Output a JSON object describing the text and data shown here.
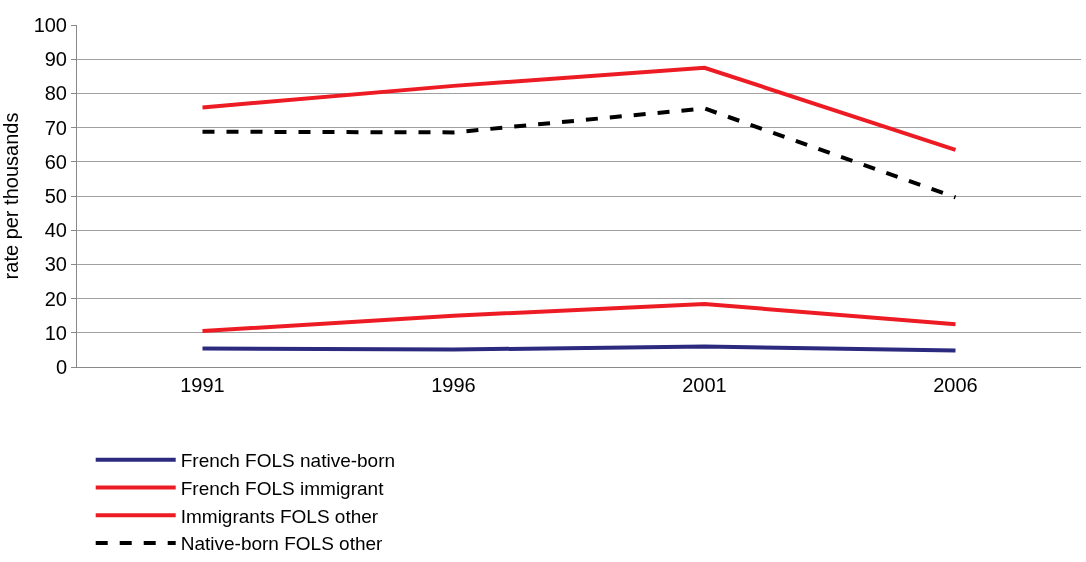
{
  "chart_data": {
    "type": "line",
    "ylabel": "rate per thousands",
    "categories": [
      "1991",
      "1996",
      "2001",
      "2006"
    ],
    "series": [
      {
        "name": "French FOLS native-born",
        "color": "#2b2a7f",
        "values": [
          5.4,
          5.1,
          6.0,
          4.8
        ]
      },
      {
        "name": "French FOLS immigrant",
        "color": "#ed1c24",
        "values": [
          10.5,
          15.0,
          18.4,
          12.5
        ]
      },
      {
        "name": "Immigrants FOLS other",
        "color": "#ed1c24",
        "values": [
          75.9,
          82.2,
          87.5,
          63.5
        ]
      },
      {
        "name": "Native-born FOLS other",
        "color": "#000000",
        "values": [
          68.8,
          68.6,
          75.6,
          49.6
        ],
        "line_style": "dashed"
      }
    ],
    "ylim": [
      0,
      100
    ],
    "yticks": [
      0,
      10,
      20,
      30,
      40,
      50,
      60,
      70,
      80,
      90,
      100
    ],
    "grid": "y",
    "legend": "bottom",
    "marker": "none"
  }
}
